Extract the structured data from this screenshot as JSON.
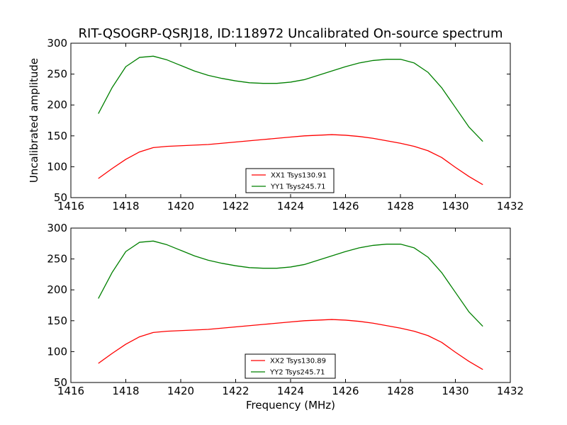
{
  "chart_data": [
    {
      "type": "line",
      "title": "RIT-QSOGRP-QSRJ18, ID:118972 Uncalibrated On-source spectrum",
      "xlabel": "",
      "ylabel": "Uncalibrated amplitude",
      "xlim": [
        1416,
        1432
      ],
      "ylim": [
        50,
        300
      ],
      "xticks": [
        1416,
        1418,
        1420,
        1422,
        1424,
        1426,
        1428,
        1430,
        1432
      ],
      "yticks": [
        50,
        100,
        150,
        200,
        250,
        300
      ],
      "legend_position": "lower-center",
      "series": [
        {
          "name": "XX1 Tsys130.91",
          "color": "#ff0000",
          "x": [
            1417.0,
            1417.5,
            1418.0,
            1418.5,
            1419.0,
            1419.5,
            1420.0,
            1420.5,
            1421.0,
            1421.5,
            1422.0,
            1422.5,
            1423.0,
            1423.5,
            1424.0,
            1424.5,
            1425.0,
            1425.5,
            1426.0,
            1426.5,
            1427.0,
            1427.5,
            1428.0,
            1428.5,
            1429.0,
            1429.5,
            1430.0,
            1430.5,
            1431.0
          ],
          "y": [
            81,
            97,
            112,
            124,
            131,
            133,
            134,
            135,
            136,
            138,
            140,
            142,
            144,
            146,
            148,
            150,
            151,
            152,
            151,
            149,
            146,
            142,
            138,
            133,
            126,
            115,
            99,
            84,
            71
          ]
        },
        {
          "name": "YY1 Tsys245.71",
          "color": "#008000",
          "x": [
            1417.0,
            1417.5,
            1418.0,
            1418.5,
            1419.0,
            1419.5,
            1420.0,
            1420.5,
            1421.0,
            1421.5,
            1422.0,
            1422.5,
            1423.0,
            1423.5,
            1424.0,
            1424.5,
            1425.0,
            1425.5,
            1426.0,
            1426.5,
            1427.0,
            1427.5,
            1428.0,
            1428.5,
            1429.0,
            1429.5,
            1430.0,
            1430.5,
            1431.0
          ],
          "y": [
            186,
            228,
            262,
            277,
            279,
            273,
            264,
            255,
            248,
            243,
            239,
            236,
            235,
            235,
            237,
            241,
            248,
            255,
            262,
            268,
            272,
            274,
            274,
            268,
            253,
            228,
            196,
            164,
            141
          ]
        }
      ]
    },
    {
      "type": "line",
      "title": "",
      "xlabel": "Frequency (MHz)",
      "ylabel": "",
      "xlim": [
        1416,
        1432
      ],
      "ylim": [
        50,
        300
      ],
      "xticks": [
        1416,
        1418,
        1420,
        1422,
        1424,
        1426,
        1428,
        1430,
        1432
      ],
      "yticks": [
        50,
        100,
        150,
        200,
        250,
        300
      ],
      "legend_position": "lower-center",
      "series": [
        {
          "name": "XX2 Tsys130.89",
          "color": "#ff0000",
          "x": [
            1417.0,
            1417.5,
            1418.0,
            1418.5,
            1419.0,
            1419.5,
            1420.0,
            1420.5,
            1421.0,
            1421.5,
            1422.0,
            1422.5,
            1423.0,
            1423.5,
            1424.0,
            1424.5,
            1425.0,
            1425.5,
            1426.0,
            1426.5,
            1427.0,
            1427.5,
            1428.0,
            1428.5,
            1429.0,
            1429.5,
            1430.0,
            1430.5,
            1431.0
          ],
          "y": [
            81,
            97,
            112,
            124,
            131,
            133,
            134,
            135,
            136,
            138,
            140,
            142,
            144,
            146,
            148,
            150,
            151,
            152,
            151,
            149,
            146,
            142,
            138,
            133,
            126,
            115,
            99,
            84,
            71
          ]
        },
        {
          "name": "YY2 Tsys245.71",
          "color": "#008000",
          "x": [
            1417.0,
            1417.5,
            1418.0,
            1418.5,
            1419.0,
            1419.5,
            1420.0,
            1420.5,
            1421.0,
            1421.5,
            1422.0,
            1422.5,
            1423.0,
            1423.5,
            1424.0,
            1424.5,
            1425.0,
            1425.5,
            1426.0,
            1426.5,
            1427.0,
            1427.5,
            1428.0,
            1428.5,
            1429.0,
            1429.5,
            1430.0,
            1430.5,
            1431.0
          ],
          "y": [
            186,
            228,
            262,
            277,
            279,
            273,
            264,
            255,
            248,
            243,
            239,
            236,
            235,
            235,
            237,
            241,
            248,
            255,
            262,
            268,
            272,
            274,
            274,
            268,
            253,
            228,
            196,
            164,
            141
          ]
        }
      ]
    }
  ]
}
